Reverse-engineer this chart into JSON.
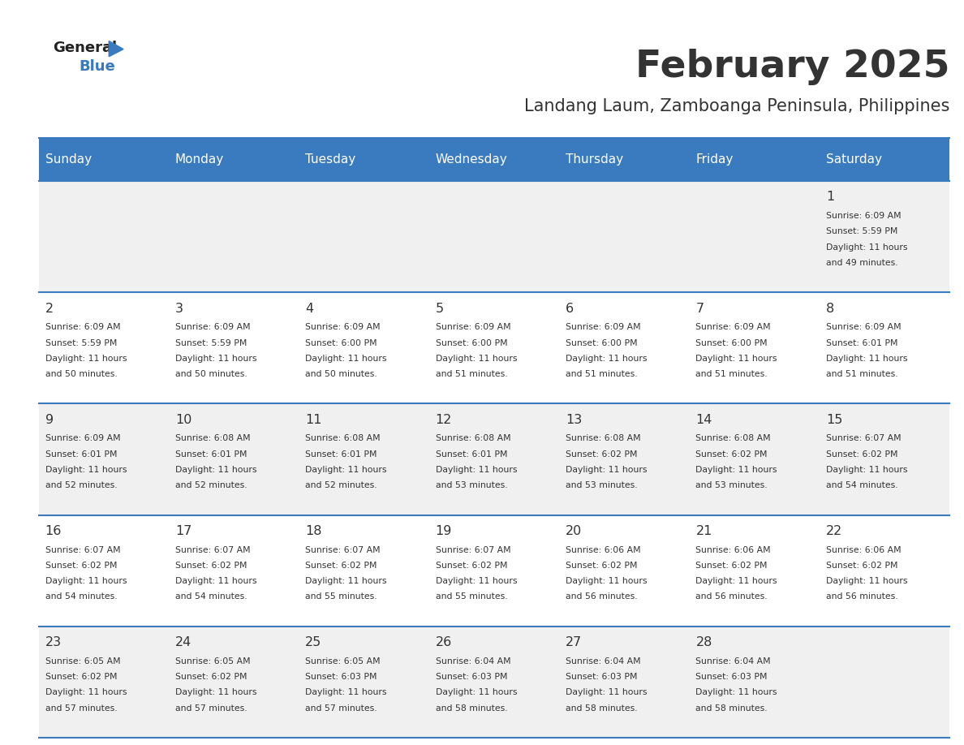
{
  "title": "February 2025",
  "subtitle": "Landang Laum, Zamboanga Peninsula, Philippines",
  "header_bg": "#3a7bbf",
  "header_text": "#ffffff",
  "day_names": [
    "Sunday",
    "Monday",
    "Tuesday",
    "Wednesday",
    "Thursday",
    "Friday",
    "Saturday"
  ],
  "cell_bg_even": "#f0f0f0",
  "cell_bg_odd": "#ffffff",
  "cell_border": "#3a7bbf",
  "day_num_color": "#333333",
  "info_color": "#333333",
  "title_color": "#333333",
  "subtitle_color": "#333333",
  "logo_general_color": "#222222",
  "logo_blue_color": "#3a7bbf",
  "calendar_data": [
    [
      null,
      null,
      null,
      null,
      null,
      null,
      {
        "day": 1,
        "sunrise": "6:09 AM",
        "sunset": "5:59 PM",
        "daylight": "11 hours and 49 minutes"
      }
    ],
    [
      {
        "day": 2,
        "sunrise": "6:09 AM",
        "sunset": "5:59 PM",
        "daylight": "11 hours and 50 minutes"
      },
      {
        "day": 3,
        "sunrise": "6:09 AM",
        "sunset": "5:59 PM",
        "daylight": "11 hours and 50 minutes"
      },
      {
        "day": 4,
        "sunrise": "6:09 AM",
        "sunset": "6:00 PM",
        "daylight": "11 hours and 50 minutes"
      },
      {
        "day": 5,
        "sunrise": "6:09 AM",
        "sunset": "6:00 PM",
        "daylight": "11 hours and 51 minutes"
      },
      {
        "day": 6,
        "sunrise": "6:09 AM",
        "sunset": "6:00 PM",
        "daylight": "11 hours and 51 minutes"
      },
      {
        "day": 7,
        "sunrise": "6:09 AM",
        "sunset": "6:00 PM",
        "daylight": "11 hours and 51 minutes"
      },
      {
        "day": 8,
        "sunrise": "6:09 AM",
        "sunset": "6:01 PM",
        "daylight": "11 hours and 51 minutes"
      }
    ],
    [
      {
        "day": 9,
        "sunrise": "6:09 AM",
        "sunset": "6:01 PM",
        "daylight": "11 hours and 52 minutes"
      },
      {
        "day": 10,
        "sunrise": "6:08 AM",
        "sunset": "6:01 PM",
        "daylight": "11 hours and 52 minutes"
      },
      {
        "day": 11,
        "sunrise": "6:08 AM",
        "sunset": "6:01 PM",
        "daylight": "11 hours and 52 minutes"
      },
      {
        "day": 12,
        "sunrise": "6:08 AM",
        "sunset": "6:01 PM",
        "daylight": "11 hours and 53 minutes"
      },
      {
        "day": 13,
        "sunrise": "6:08 AM",
        "sunset": "6:02 PM",
        "daylight": "11 hours and 53 minutes"
      },
      {
        "day": 14,
        "sunrise": "6:08 AM",
        "sunset": "6:02 PM",
        "daylight": "11 hours and 53 minutes"
      },
      {
        "day": 15,
        "sunrise": "6:07 AM",
        "sunset": "6:02 PM",
        "daylight": "11 hours and 54 minutes"
      }
    ],
    [
      {
        "day": 16,
        "sunrise": "6:07 AM",
        "sunset": "6:02 PM",
        "daylight": "11 hours and 54 minutes"
      },
      {
        "day": 17,
        "sunrise": "6:07 AM",
        "sunset": "6:02 PM",
        "daylight": "11 hours and 54 minutes"
      },
      {
        "day": 18,
        "sunrise": "6:07 AM",
        "sunset": "6:02 PM",
        "daylight": "11 hours and 55 minutes"
      },
      {
        "day": 19,
        "sunrise": "6:07 AM",
        "sunset": "6:02 PM",
        "daylight": "11 hours and 55 minutes"
      },
      {
        "day": 20,
        "sunrise": "6:06 AM",
        "sunset": "6:02 PM",
        "daylight": "11 hours and 56 minutes"
      },
      {
        "day": 21,
        "sunrise": "6:06 AM",
        "sunset": "6:02 PM",
        "daylight": "11 hours and 56 minutes"
      },
      {
        "day": 22,
        "sunrise": "6:06 AM",
        "sunset": "6:02 PM",
        "daylight": "11 hours and 56 minutes"
      }
    ],
    [
      {
        "day": 23,
        "sunrise": "6:05 AM",
        "sunset": "6:02 PM",
        "daylight": "11 hours and 57 minutes"
      },
      {
        "day": 24,
        "sunrise": "6:05 AM",
        "sunset": "6:02 PM",
        "daylight": "11 hours and 57 minutes"
      },
      {
        "day": 25,
        "sunrise": "6:05 AM",
        "sunset": "6:03 PM",
        "daylight": "11 hours and 57 minutes"
      },
      {
        "day": 26,
        "sunrise": "6:04 AM",
        "sunset": "6:03 PM",
        "daylight": "11 hours and 58 minutes"
      },
      {
        "day": 27,
        "sunrise": "6:04 AM",
        "sunset": "6:03 PM",
        "daylight": "11 hours and 58 minutes"
      },
      {
        "day": 28,
        "sunrise": "6:04 AM",
        "sunset": "6:03 PM",
        "daylight": "11 hours and 58 minutes"
      },
      null
    ]
  ]
}
